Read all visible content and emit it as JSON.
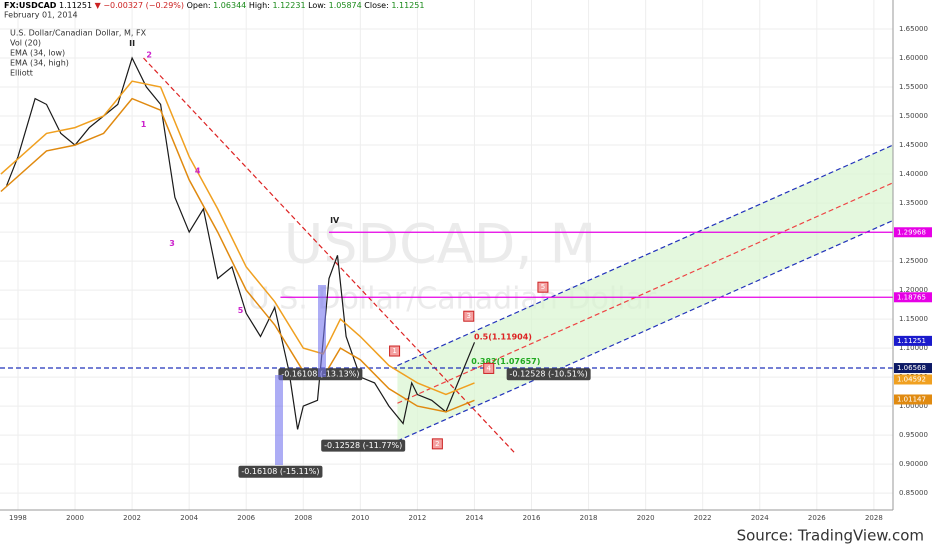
{
  "header": {
    "symbol": "FX:USDCAD",
    "price": "1.11251",
    "change": "▼ −0.00327 (−0.29%)",
    "open_label": "Open:",
    "open": "1.06344",
    "high_label": "High:",
    "high": "1.12231",
    "low_label": "Low:",
    "low": "1.05874",
    "close_label": "Close:",
    "close": "1.11251",
    "date": "February 01, 2014"
  },
  "legend": [
    "U.S. Dollar/Canadian Dollar, M, FX",
    "Vol (20)",
    "EMA (34, low)",
    "EMA (34, high)",
    "Elliott"
  ],
  "source": "Source: TradingView.com",
  "chart_data": {
    "type": "line",
    "title": "USDCAD, M",
    "subtitle": "U.S. Dollar/Canadian Dollar",
    "xlim": [
      1997.37,
      2028.67
    ],
    "ylim": [
      0.821,
      1.7
    ],
    "xticks": [
      1998,
      2000,
      2002,
      2004,
      2006,
      2008,
      2010,
      2012,
      2014,
      2016,
      2018,
      2020,
      2022,
      2024,
      2026,
      2028
    ],
    "yticks": [
      {
        "value": 0.85,
        "label": "0.85000"
      },
      {
        "value": 0.9,
        "label": "0.90000"
      },
      {
        "value": 0.95,
        "label": "0.95000"
      },
      {
        "value": 1.0,
        "label": "1.00000"
      },
      {
        "value": 1.05,
        "label": "1.05000"
      },
      {
        "value": 1.1,
        "label": "1.10000"
      },
      {
        "value": 1.15,
        "label": "1.15000"
      },
      {
        "value": 1.2,
        "label": "1.20000"
      },
      {
        "value": 1.25,
        "label": "1.25000"
      },
      {
        "value": 1.3,
        "label": "1.30000"
      },
      {
        "value": 1.35,
        "label": "1.35000"
      },
      {
        "value": 1.4,
        "label": "1.40000"
      },
      {
        "value": 1.45,
        "label": "1.45000"
      },
      {
        "value": 1.5,
        "label": "1.50000"
      },
      {
        "value": 1.55,
        "label": "1.55000"
      },
      {
        "value": 1.6,
        "label": "1.60000"
      },
      {
        "value": 1.65,
        "label": "1.65000"
      }
    ],
    "grid": true,
    "series": [
      {
        "color": "#1a1a1a",
        "x": [
          1997.6,
          1998.0,
          1998.6,
          1999.0,
          1999.5,
          2000.0,
          2000.5,
          2001.0,
          2001.5,
          2002.0,
          2002.5,
          2003.0,
          2003.5,
          2004.0,
          2004.5,
          2005.0,
          2005.5,
          2006.0,
          2006.5,
          2007.0,
          2007.5,
          2007.8,
          2008.0,
          2008.5,
          2008.9,
          2009.2,
          2009.5,
          2010.0,
          2010.5,
          2011.0,
          2011.5,
          2011.8,
          2012.0,
          2012.5,
          2013.0,
          2013.5,
          2014.0
        ],
        "values": [
          1.38,
          1.43,
          1.53,
          1.52,
          1.47,
          1.45,
          1.48,
          1.5,
          1.52,
          1.6,
          1.55,
          1.52,
          1.36,
          1.3,
          1.34,
          1.22,
          1.24,
          1.16,
          1.12,
          1.17,
          1.06,
          0.96,
          1.0,
          1.01,
          1.22,
          1.26,
          1.12,
          1.05,
          1.04,
          1.0,
          0.97,
          1.04,
          1.02,
          1.01,
          0.99,
          1.05,
          1.11
        ]
      },
      {
        "name": "EMA (34, high)",
        "color": "#f0a020",
        "x": [
          1997.4,
          1999,
          2000,
          2001,
          2002,
          2003,
          2004,
          2005,
          2006,
          2007,
          2008,
          2008.7,
          2009.3,
          2010,
          2011,
          2012,
          2013,
          2014
        ],
        "values": [
          1.4,
          1.47,
          1.48,
          1.5,
          1.56,
          1.55,
          1.43,
          1.34,
          1.24,
          1.18,
          1.1,
          1.09,
          1.15,
          1.12,
          1.07,
          1.04,
          1.02,
          1.04
        ]
      },
      {
        "name": "EMA (34, low)",
        "color": "#e08a10",
        "x": [
          1997.4,
          1999,
          2000,
          2001,
          2002,
          2003,
          2004,
          2005,
          2006,
          2007,
          2008,
          2008.7,
          2009.3,
          2010,
          2011,
          2012,
          2013,
          2014
        ],
        "values": [
          1.37,
          1.44,
          1.45,
          1.47,
          1.53,
          1.51,
          1.39,
          1.3,
          1.2,
          1.14,
          1.06,
          1.05,
          1.1,
          1.08,
          1.03,
          1.0,
          0.99,
          1.01
        ]
      }
    ],
    "lines": [
      {
        "x": [
          2002.4,
          2015.4
        ],
        "y": [
          1.6,
          0.92
        ],
        "color": "#dd2222",
        "dash": true
      },
      {
        "x": [
          2011.3,
          2028.67
        ],
        "y": [
          1.07,
          1.45
        ],
        "color": "#2233bb",
        "dash": true
      },
      {
        "x": [
          2011.3,
          2028.67
        ],
        "y": [
          0.94,
          1.32
        ],
        "color": "#2233bb",
        "dash": true
      },
      {
        "x": [
          2011.3,
          2028.67
        ],
        "y": [
          1.005,
          1.385
        ],
        "color": "#ee4444",
        "dash": true
      },
      {
        "x": [
          2008.9,
          2028.67
        ],
        "y": [
          1.29968,
          1.29968
        ],
        "color": "#e600e6",
        "dash": false
      },
      {
        "x": [
          2007.2,
          2028.67
        ],
        "y": [
          1.18765,
          1.18765
        ],
        "color": "#e600e6",
        "dash": false
      },
      {
        "x": [
          1997.37,
          2028.67
        ],
        "y": [
          1.06568,
          1.06568
        ],
        "color": "#2233bb",
        "dash": true
      }
    ],
    "price_labels": [
      {
        "value": 1.29968,
        "color": "#e600e6"
      },
      {
        "value": 1.18765,
        "color": "#e600e6"
      },
      {
        "value": 1.11251,
        "color": "#1a1acc"
      },
      {
        "value": 1.06568,
        "color": "#0d1a66"
      },
      {
        "value": 1.04592,
        "color": "#f0a020"
      },
      {
        "value": 1.01147,
        "color": "#e08a10"
      }
    ],
    "annotations": [
      {
        "text": "II",
        "x": 2002.0,
        "y": 1.625,
        "color": "#222"
      },
      {
        "text": "IV",
        "x": 2009.1,
        "y": 1.32,
        "color": "#222"
      },
      {
        "text": "2",
        "x": 2002.6,
        "y": 1.605,
        "color": "#cc22cc"
      },
      {
        "text": "1",
        "x": 2002.4,
        "y": 1.485,
        "color": "#cc22cc"
      },
      {
        "text": "4",
        "x": 2004.3,
        "y": 1.405,
        "color": "#cc22cc"
      },
      {
        "text": "3",
        "x": 2003.4,
        "y": 1.28,
        "color": "#cc22cc"
      },
      {
        "text": "5",
        "x": 2005.8,
        "y": 1.165,
        "color": "#cc22cc"
      },
      {
        "text": "0.5(1.11904)",
        "x": 2015.0,
        "y": 1.11904,
        "color": "#dd2222"
      },
      {
        "text": "0.382(1.07657)",
        "x": 2015.1,
        "y": 1.07657,
        "color": "#22aa22"
      }
    ],
    "boxes": [
      {
        "text": "1",
        "x": 2011.2,
        "y": 1.095
      },
      {
        "text": "2",
        "x": 2012.7,
        "y": 0.935
      },
      {
        "text": "3",
        "x": 2013.8,
        "y": 1.155
      },
      {
        "text": "4",
        "x": 2014.5,
        "y": 1.065
      },
      {
        "text": "5",
        "x": 2016.4,
        "y": 1.205
      }
    ],
    "measures": [
      {
        "text": "-0.16108 (-13.13%)",
        "x": 2008.6,
        "y": 1.055
      },
      {
        "text": "-0.16108 (-15.11%)",
        "x": 2007.2,
        "y": 0.887
      },
      {
        "text": "-0.12528 (-11.77%)",
        "x": 2010.1,
        "y": 0.932
      },
      {
        "text": "-0.12528 (-10.51%)",
        "x": 2016.6,
        "y": 1.055
      }
    ]
  }
}
